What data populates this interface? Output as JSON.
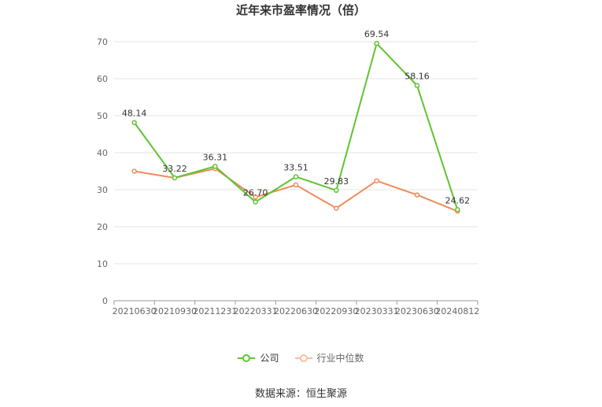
{
  "chart_data": {
    "type": "line",
    "title": "近年来市盈率情况（倍）",
    "categories": [
      "20210630",
      "20210930",
      "20211231",
      "20220331",
      "20220630",
      "20220930",
      "20230331",
      "20230630",
      "20240812"
    ],
    "series": [
      {
        "name": "公司",
        "values": [
          48.14,
          33.22,
          36.31,
          26.7,
          33.51,
          29.83,
          69.54,
          58.16,
          24.62
        ],
        "color": "#5fc431",
        "labels": [
          "48.14",
          "33.22",
          "36.31",
          "26.70",
          "33.51",
          "29.83",
          "69.54",
          "58.16",
          "24.62"
        ]
      },
      {
        "name": "行业中位数",
        "values": [
          35.0,
          33.2,
          35.7,
          28.0,
          31.3,
          25.0,
          32.4,
          28.6,
          24.2
        ],
        "color": "#f08b5a"
      }
    ],
    "ylim": [
      0,
      70
    ],
    "yticks": [
      "0",
      "10",
      "20",
      "30",
      "40",
      "50",
      "60",
      "70"
    ],
    "grid": true,
    "legend_position": "bottom"
  },
  "source": "数据来源：恒生聚源"
}
